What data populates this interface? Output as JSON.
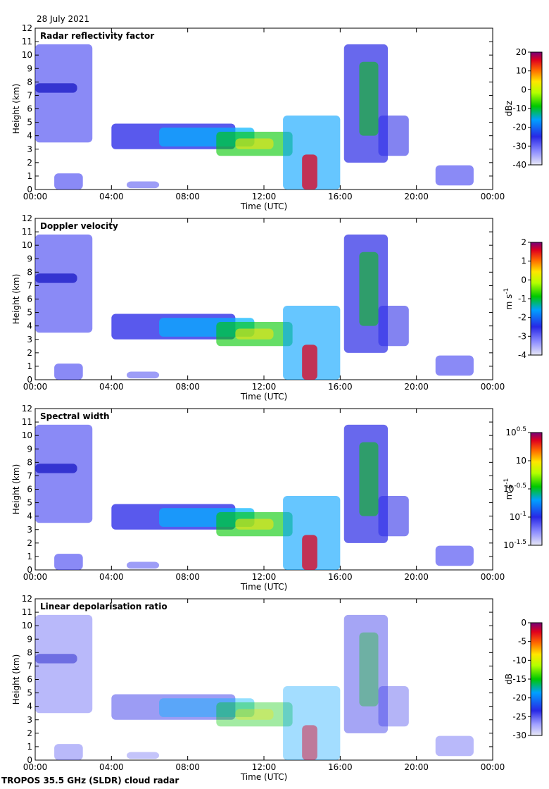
{
  "date": "28 July 2021",
  "footer": "TROPOS 35.5 GHz (SLDR) cloud radar",
  "chart_data": [
    {
      "type": "heatmap",
      "title": "Radar reflectivity factor",
      "xlabel": "Time (UTC)",
      "ylabel": "Height (km)",
      "xticks": [
        "00:00",
        "04:00",
        "08:00",
        "12:00",
        "16:00",
        "20:00",
        "00:00"
      ],
      "ylim": [
        0,
        12
      ],
      "yticks": [
        "0",
        "1",
        "2",
        "3",
        "4",
        "5",
        "6",
        "7",
        "8",
        "9",
        "10",
        "11",
        "12"
      ],
      "colorbar": {
        "unit": "dBz",
        "ticks": [
          "20",
          "10",
          "0",
          "-10",
          "-20",
          "-30",
          "-40"
        ],
        "range": [
          -40,
          20
        ]
      },
      "bg": "#e0e0e6"
    },
    {
      "type": "heatmap",
      "title": "Doppler velocity",
      "xlabel": "Time (UTC)",
      "ylabel": "Height (km)",
      "xticks": [
        "00:00",
        "04:00",
        "08:00",
        "12:00",
        "16:00",
        "20:00",
        "00:00"
      ],
      "ylim": [
        0,
        12
      ],
      "yticks": [
        "0",
        "1",
        "2",
        "3",
        "4",
        "5",
        "6",
        "7",
        "8",
        "9",
        "10",
        "11",
        "12"
      ],
      "colorbar": {
        "unit": "m s",
        "unit_sup": "-1",
        "ticks": [
          "2",
          "1",
          "0",
          "-1",
          "-2",
          "-3",
          "-4"
        ],
        "range": [
          -4,
          2
        ]
      },
      "bg": "#e0e0e6"
    },
    {
      "type": "heatmap",
      "title": "Spectral width",
      "xlabel": "Time (UTC)",
      "ylabel": "Height (km)",
      "xticks": [
        "00:00",
        "04:00",
        "08:00",
        "12:00",
        "16:00",
        "20:00",
        "00:00"
      ],
      "ylim": [
        0,
        12
      ],
      "yticks": [
        "0",
        "1",
        "2",
        "3",
        "4",
        "5",
        "6",
        "7",
        "8",
        "9",
        "10",
        "11",
        "12"
      ],
      "colorbar": {
        "unit": "m s",
        "unit_sup": "-1",
        "ticks": [
          "10",
          "10",
          "10",
          "10",
          "10"
        ],
        "tick_exps": [
          "0.5",
          "",
          "-0.5",
          "-1",
          "-1.5"
        ],
        "range": [
          -1.5,
          0.5
        ]
      },
      "bg": "#e0e0e6"
    },
    {
      "type": "heatmap",
      "title": "Linear depolarisation ratio",
      "xlabel": "Time (UTC)",
      "ylabel": "Height (km)",
      "xticks": [
        "00:00",
        "04:00",
        "08:00",
        "12:00",
        "16:00",
        "20:00",
        "00:00"
      ],
      "ylim": [
        0,
        12
      ],
      "yticks": [
        "0",
        "1",
        "2",
        "3",
        "4",
        "5",
        "6",
        "7",
        "8",
        "9",
        "10",
        "11",
        "12"
      ],
      "colorbar": {
        "unit": "dB",
        "ticks": [
          "0",
          "-5",
          "-10",
          "-15",
          "-20",
          "-25",
          "-30"
        ],
        "range": [
          -30,
          0
        ]
      },
      "bg": "#ffffff"
    }
  ]
}
